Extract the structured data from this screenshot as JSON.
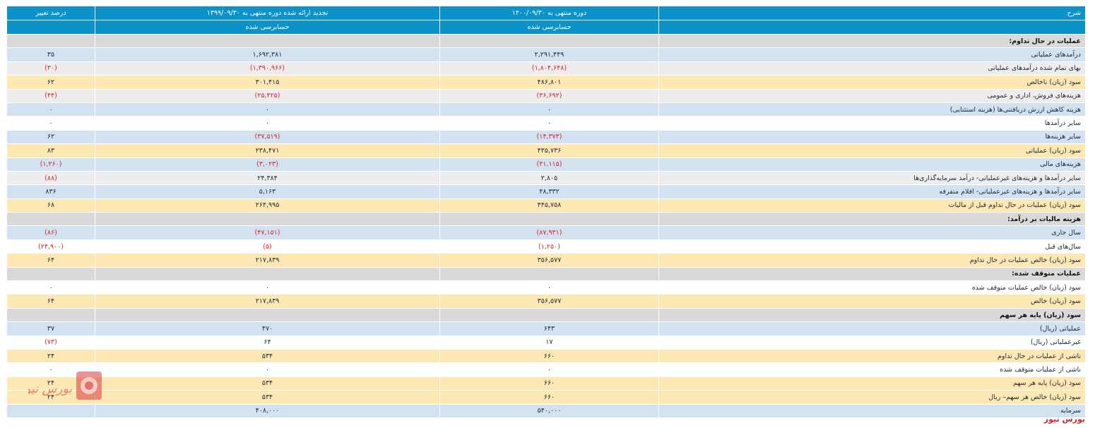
{
  "header": {
    "desc": "شرح",
    "current": "دوره منتهی به ۱۴۰۰/۰۹/۳۰",
    "current_sub": "حسابرسی شده",
    "previous": "تجدید ارائه شده دوره منتهی به ۱۳۹۹/۰۹/۳۰",
    "previous_sub": "حسابرسی شده",
    "change": "درصد تغییر"
  },
  "rows": [
    {
      "style": "section",
      "desc": "عملیات در حال تداوم:",
      "cur": "",
      "prev": "",
      "pct": ""
    },
    {
      "style": "blue",
      "desc": "درآمدهای عملیاتی",
      "cur": "۲,۲۹۱,۴۴۹",
      "prev": "۱,۶۹۲,۳۸۱",
      "pct": "۳۵"
    },
    {
      "style": "gray",
      "desc": "بهای تمام شده درآمدهای عملیاتی",
      "cur": "(۱,۸۰۴,۶۴۸)",
      "prev": "(۱,۳۹۰,۹۶۶)",
      "pct": "(۳۰)"
    },
    {
      "style": "yellow",
      "desc": "سود (زیان) ناخالص",
      "cur": "۴۸۶,۸۰۱",
      "prev": "۳۰۱,۴۱۵",
      "pct": "۶۲"
    },
    {
      "style": "gray",
      "desc": "هزینه‌های فروش، اداری و عمومی",
      "cur": "(۳۶,۶۹۲)",
      "prev": "(۲۵,۴۲۵)",
      "pct": "(۴۴)"
    },
    {
      "style": "blue",
      "desc": "هزینه کاهش ارزش دریافتنی‌ها (هزینه استثنایی)",
      "cur": "۰",
      "prev": "۰",
      "pct": "۰"
    },
    {
      "style": "white",
      "desc": "سایر درآمدها",
      "cur": "۰",
      "prev": "۰",
      "pct": "۰"
    },
    {
      "style": "blue",
      "desc": "سایر هزینه‌ها",
      "cur": "(۱۴,۳۷۳)",
      "prev": "(۳۷,۵۱۹)",
      "pct": "۶۲"
    },
    {
      "style": "yellow",
      "desc": "سود (زیان) عملیاتی",
      "cur": "۴۳۵,۷۳۶",
      "prev": "۲۳۸,۴۷۱",
      "pct": "۸۳"
    },
    {
      "style": "blue",
      "desc": "هزینه‌های مالی",
      "cur": "(۴۱,۱۱۵)",
      "prev": "(۳,۰۲۳)",
      "pct": "(۱,۲۶۰)"
    },
    {
      "style": "gray",
      "desc": "سایر درآمدها و هزینه‌های غیرعملیاتی- درآمد سرمایه‌گذاری‌ها",
      "cur": "۲,۸۰۵",
      "prev": "۲۴,۳۸۴",
      "pct": "(۸۸)"
    },
    {
      "style": "blue",
      "desc": "سایر درآمدها و هزینه‌های غیرعملیاتی- اقلام متفرقه",
      "cur": "۴۸,۳۳۲",
      "prev": "۵,۱۶۳",
      "pct": "۸۳۶"
    },
    {
      "style": "yellow",
      "desc": "سود (زیان) عملیات در حال تداوم قبل از مالیات",
      "cur": "۴۴۵,۷۵۸",
      "prev": "۲۶۴,۹۹۵",
      "pct": "۶۸"
    },
    {
      "style": "section",
      "desc": "هزینه مالیات بر درآمد:",
      "cur": "",
      "prev": "",
      "pct": ""
    },
    {
      "style": "blue",
      "desc": "سال جاری",
      "cur": "(۸۷,۹۳۱)",
      "prev": "(۴۷,۱۵۱)",
      "pct": "(۸۶)"
    },
    {
      "style": "white",
      "desc": "سال‌های قبل",
      "cur": "(۱,۲۵۰)",
      "prev": "(۵)",
      "pct": "(۲۴,۹۰۰)"
    },
    {
      "style": "yellow",
      "desc": "سود (زیان) خالص عملیات در حال تداوم",
      "cur": "۳۵۶,۵۷۷",
      "prev": "۲۱۷,۸۳۹",
      "pct": "۶۴"
    },
    {
      "style": "section",
      "desc": "عملیات متوقف شده:",
      "cur": "",
      "prev": "",
      "pct": ""
    },
    {
      "style": "white",
      "desc": "سود (زیان) خالص عملیات متوقف شده",
      "cur": "۰",
      "prev": "۰",
      "pct": "۰"
    },
    {
      "style": "yellow",
      "desc": "سود (زیان) خالص",
      "cur": "۳۵۶,۵۷۷",
      "prev": "۲۱۷,۸۳۹",
      "pct": "۶۴"
    },
    {
      "style": "section",
      "desc": "سود (زیان) پایه هر سهم",
      "cur": "",
      "prev": "",
      "pct": ""
    },
    {
      "style": "blue",
      "desc": "عملیاتی (ریال)",
      "cur": "۶۴۳",
      "prev": "۴۷۰",
      "pct": "۳۷"
    },
    {
      "style": "white",
      "desc": "غیرعملیاتی (ریال)",
      "cur": "۱۷",
      "prev": "۶۴",
      "pct": "(۷۳)"
    },
    {
      "style": "yellow",
      "desc": "ناشی از عملیات در حال تداوم",
      "cur": "۶۶۰",
      "prev": "۵۳۴",
      "pct": "۲۴"
    },
    {
      "style": "white",
      "desc": "ناشی از عملیات متوقف شده",
      "cur": "۰",
      "prev": "۰",
      "pct": "۰"
    },
    {
      "style": "yellow",
      "desc": "سود (زیان) پایه هر سهم",
      "cur": "۶۶۰",
      "prev": "۵۳۴",
      "pct": "۲۴"
    },
    {
      "style": "yellow",
      "desc": "سود (زیان) خالص هر سهم– ریال",
      "cur": "۶۶۰",
      "prev": "۵۳۴",
      "pct": "۲۴"
    },
    {
      "style": "blue",
      "desc": "سرمایه",
      "cur": "۵۴۰,۰۰۰",
      "prev": "۴۰۸,۰۰۰",
      "pct": ""
    }
  ],
  "watermark": {
    "brand": "بورس نیوز",
    "logo_color": "#d3252b"
  }
}
